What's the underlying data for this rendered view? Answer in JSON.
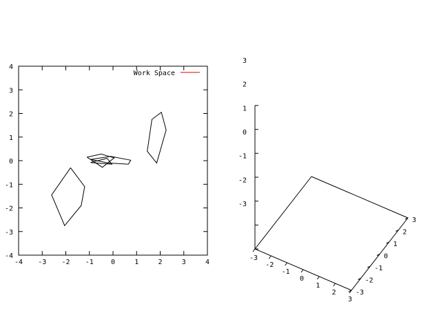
{
  "chart_data": [
    {
      "type": "line",
      "xlim": [
        -4,
        4
      ],
      "ylim": [
        -4,
        4
      ],
      "xticks": [
        -4,
        -3,
        -2,
        -1,
        0,
        1,
        2,
        3,
        4
      ],
      "yticks": [
        -4,
        -3,
        -2,
        -1,
        0,
        1,
        2,
        3,
        4
      ],
      "grid": false,
      "legend": {
        "position": "top-right",
        "entries": [
          {
            "label": "Work Space",
            "color": "#e00000"
          }
        ]
      },
      "series": [
        {
          "name": "Work Space",
          "color": "#e00000",
          "x": [],
          "y": []
        }
      ],
      "shapes": [
        {
          "x": [
            -1.8,
            -1.2,
            -1.35,
            -2.05,
            -2.6,
            -1.8
          ],
          "y": [
            -0.3,
            -1.1,
            -1.9,
            -2.75,
            -1.45,
            -0.3
          ]
        },
        {
          "x": [
            1.65,
            2.05,
            2.25,
            1.85,
            1.45,
            1.65
          ],
          "y": [
            1.75,
            2.05,
            1.3,
            -0.1,
            0.4,
            1.75
          ]
        },
        {
          "x": [
            -1.1,
            -0.5,
            0.05,
            -0.45,
            -1.1
          ],
          "y": [
            0.15,
            0.28,
            0.12,
            -0.28,
            0.15
          ]
        },
        {
          "x": [
            -0.95,
            -0.1,
            0.75,
            0.65,
            -0.2,
            -0.95
          ],
          "y": [
            0.05,
            0.18,
            0.02,
            -0.15,
            -0.1,
            0.05
          ]
        },
        {
          "x": [
            -0.95,
            -0.25,
            -0.05,
            -0.95
          ],
          "y": [
            -0.08,
            0.1,
            -0.15,
            -0.08
          ]
        }
      ]
    },
    {
      "type": "scatter",
      "projection": "3d",
      "xticks": [
        -3,
        -2,
        -1,
        0,
        1,
        2,
        3
      ],
      "yticks": [
        -3,
        -2,
        -1,
        0,
        1,
        2,
        3
      ],
      "zticks": [
        -3,
        -2,
        -1,
        0,
        1,
        2,
        3
      ],
      "grid": false,
      "series": []
    }
  ]
}
